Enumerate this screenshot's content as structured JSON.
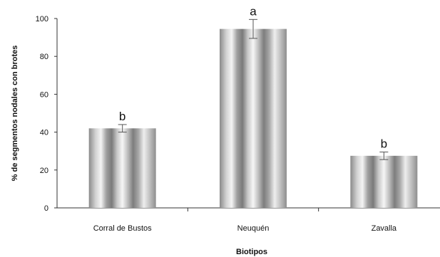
{
  "chart_data": {
    "type": "bar",
    "title": "",
    "xlabel": "Biotipos",
    "ylabel": "% de segmentos nodales con brotes",
    "categories": [
      "Corral de Bustos",
      "Neuquén",
      "Zavalla"
    ],
    "values": [
      42,
      94.5,
      27.5
    ],
    "error": [
      2,
      5,
      2
    ],
    "significance_letters": [
      "b",
      "a",
      "b"
    ],
    "ylim": [
      0,
      100
    ],
    "yticks": [
      0,
      20,
      40,
      60,
      80,
      100
    ],
    "ytick_labels": [
      "0",
      "20",
      "40",
      "60",
      "80",
      "100"
    ],
    "grid": false,
    "legend": "none",
    "bar_fill": "cylindrical-gray-gradient"
  }
}
